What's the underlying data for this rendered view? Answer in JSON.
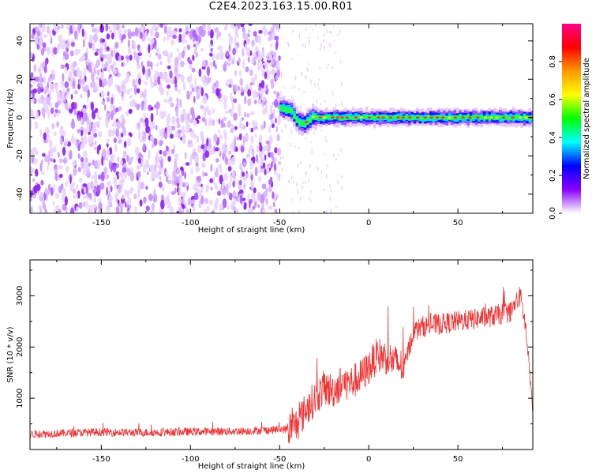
{
  "title": "C2E4.2023.163.15.00.R01",
  "chart_data": [
    {
      "type": "heatmap",
      "title": "C2E4.2023.163.15.00.R01",
      "xlabel": "Height of straight line (km)",
      "ylabel": "Frequency (Hz)",
      "xlim": [
        -190,
        92
      ],
      "ylim": [
        -50,
        49
      ],
      "x_ticks": [
        "-150",
        "-100",
        "-50",
        "0",
        "50"
      ],
      "y_ticks": [
        "-40",
        "-20",
        "0",
        "20",
        "40"
      ],
      "noise_region_x": [
        -190,
        -50
      ],
      "signal_band": {
        "x_start": -50,
        "x_end": 92,
        "center_frequency_start": 5,
        "center_frequency_end": 0,
        "dip_frequency_at_x_-37": -5
      },
      "colorbar": {
        "label": "Normalized spectral amplitude",
        "range": [
          0,
          1
        ],
        "ticks": [
          "0.0",
          "0.2",
          "0.4",
          "0.6",
          "0.8"
        ],
        "colors": [
          "#ffffff",
          "#8a00ff",
          "#0000ff",
          "#00ffff",
          "#00ff00",
          "#ffff00",
          "#ff9900",
          "#ff0000",
          "#ff0088"
        ]
      }
    },
    {
      "type": "line",
      "xlabel": "Height of straight line (km)",
      "ylabel": "SNR (10 * v/v)",
      "xlim": [
        -190,
        92
      ],
      "ylim": [
        0,
        3700
      ],
      "x_ticks": [
        "-150",
        "-100",
        "-50",
        "0",
        "50"
      ],
      "y_ticks": [
        "1000",
        "2000",
        "3000"
      ],
      "color": "#ee3333",
      "series": [
        {
          "x": [
            -190,
            -170,
            -150,
            -130,
            -110,
            -90,
            -70,
            -55,
            -45,
            -40,
            -35,
            -30,
            -25,
            -20,
            -15,
            -10,
            -5,
            0,
            5,
            10,
            15,
            20,
            22,
            25,
            30,
            40,
            50,
            60,
            70,
            80,
            85,
            88,
            90,
            92
          ],
          "values": [
            300,
            320,
            340,
            330,
            340,
            350,
            360,
            380,
            400,
            500,
            800,
            1000,
            1200,
            1150,
            1300,
            1300,
            1400,
            1600,
            1850,
            1800,
            1700,
            1600,
            1900,
            2300,
            2400,
            2450,
            2500,
            2550,
            2600,
            2700,
            3000,
            2400,
            1500,
            900
          ]
        }
      ]
    }
  ]
}
